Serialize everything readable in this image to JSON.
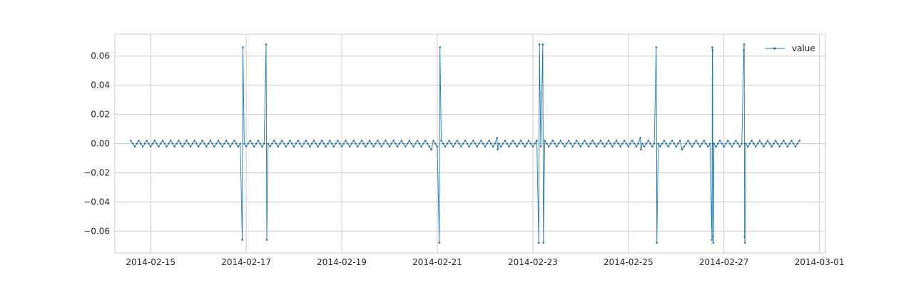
{
  "chart_data": {
    "type": "line",
    "title": "",
    "xlabel": "",
    "ylabel": "",
    "x_axis": {
      "kind": "date",
      "min": "2014-02-14T06:00",
      "max": "2014-03-01T03:00"
    },
    "ylim": [
      -0.075,
      0.075
    ],
    "x_ticks": [
      "2014-02-15",
      "2014-02-17",
      "2014-02-19",
      "2014-02-21",
      "2014-02-23",
      "2014-02-25",
      "2014-02-27",
      "2014-03-01"
    ],
    "y_ticks": [
      -0.06,
      -0.04,
      -0.02,
      0.0,
      0.02,
      0.04,
      0.06
    ],
    "y_tick_labels": [
      "−0.06",
      "−0.04",
      "−0.02",
      "0.00",
      "0.02",
      "0.04",
      "0.06"
    ],
    "grid": true,
    "legend": {
      "position": "top-right",
      "entries": [
        "value"
      ]
    },
    "colors": {
      "series": "#1f77b4",
      "grid": "#cccccc",
      "frame": "#cccccc"
    },
    "series": [
      {
        "name": "value",
        "marker": "dot",
        "baseline": {
          "start": "2014-02-14T14:00",
          "end": "2014-02-28T14:00",
          "interval_hours": 1,
          "values": [
            0.002,
            0.0,
            -0.002,
            0.0
          ]
        },
        "spikes": [
          {
            "t": "2014-02-16T22:00",
            "values": [
              -0.066,
              0.066
            ]
          },
          {
            "t": "2014-02-17T10:00",
            "values": [
              0.068,
              -0.066
            ]
          },
          {
            "t": "2014-02-20T21:00",
            "values": [
              -0.004
            ]
          },
          {
            "t": "2014-02-21T01:00",
            "values": [
              -0.068,
              0.066
            ]
          },
          {
            "t": "2014-02-22T06:00",
            "values": [
              0.004,
              -0.004
            ]
          },
          {
            "t": "2014-02-23T03:00",
            "values": [
              -0.068,
              0.068
            ]
          },
          {
            "t": "2014-02-23T05:00",
            "values": [
              0.068,
              -0.068
            ]
          },
          {
            "t": "2014-02-25T06:00",
            "values": [
              0.004,
              -0.004
            ]
          },
          {
            "t": "2014-02-25T14:00",
            "values": [
              0.066,
              -0.068
            ]
          },
          {
            "t": "2014-02-26T03:00",
            "values": [
              -0.004
            ]
          },
          {
            "t": "2014-02-26T18:00",
            "values": [
              -0.066,
              0.066,
              0.064,
              -0.064,
              -0.068
            ]
          },
          {
            "t": "2014-02-27T10:00",
            "values": [
              0.064,
              0.068,
              -0.064,
              -0.068
            ]
          }
        ]
      }
    ]
  }
}
